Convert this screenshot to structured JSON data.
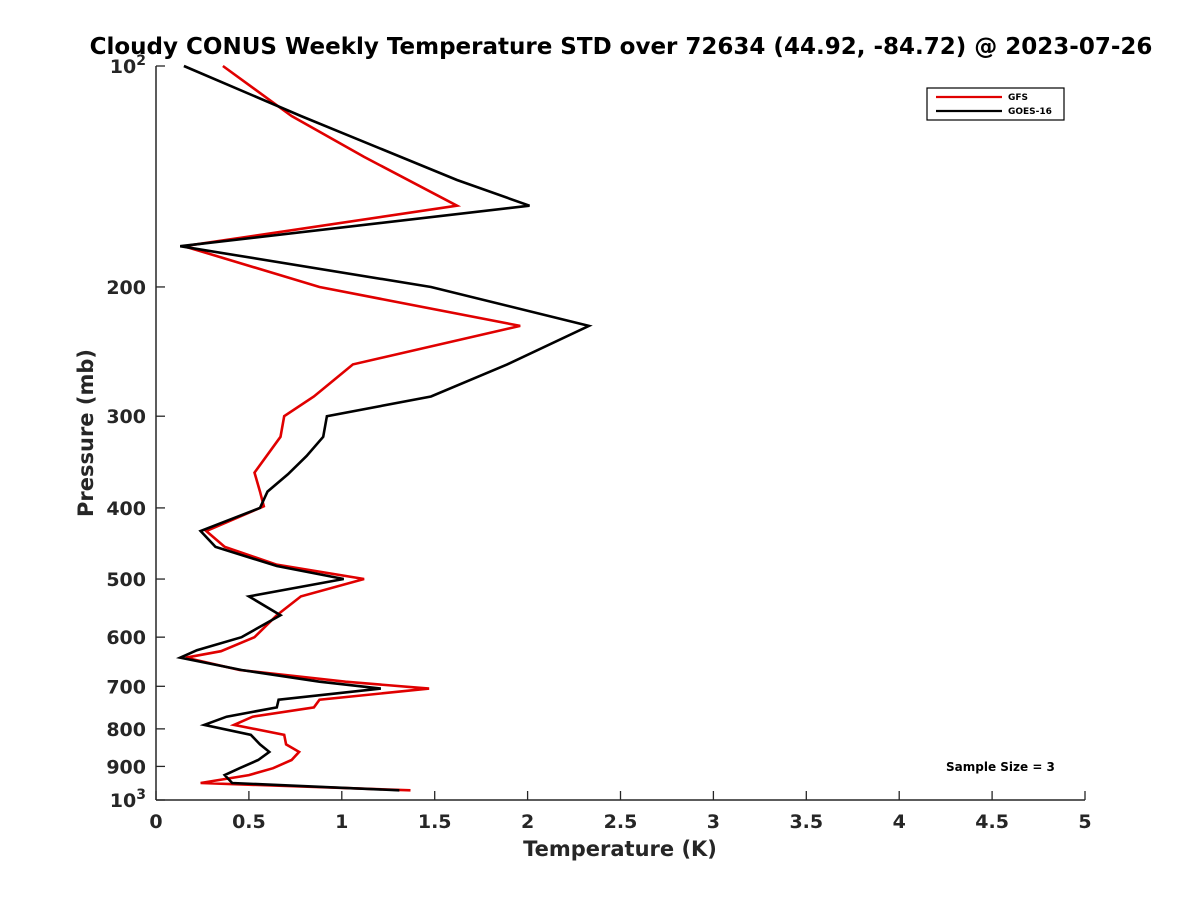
{
  "chart_data": {
    "type": "line",
    "title": "Cloudy CONUS Weekly Temperature STD over 72634 (44.92, -84.72) @ 2023-07-26",
    "xlabel": "Temperature (K)",
    "ylabel": "Pressure (mb)",
    "xlim": [
      0,
      5
    ],
    "ylim": [
      100,
      1000
    ],
    "yscale": "log",
    "yreversed": true,
    "x_ticks": [
      "0",
      "0.5",
      "1",
      "1.5",
      "2",
      "2.5",
      "3",
      "3.5",
      "4",
      "4.5",
      "5"
    ],
    "y_ticks": [
      {
        "value": 100,
        "base": "10",
        "exp": "2"
      },
      {
        "value": 200,
        "label": "200"
      },
      {
        "value": 300,
        "label": "300"
      },
      {
        "value": 400,
        "label": "400"
      },
      {
        "value": 500,
        "label": "500"
      },
      {
        "value": 600,
        "label": "600"
      },
      {
        "value": 700,
        "label": "700"
      },
      {
        "value": 800,
        "label": "800"
      },
      {
        "value": 900,
        "label": "900"
      },
      {
        "value": 1000,
        "base": "10",
        "exp": "3"
      }
    ],
    "grid": false,
    "legend_position": "top-right",
    "annotation": "Sample Size = 3",
    "series": [
      {
        "name": "GFS",
        "color": "#e00000",
        "x": [
          0.36,
          0.73,
          1.12,
          1.62,
          0.15,
          0.88,
          1.96,
          1.06,
          0.85,
          0.69,
          0.67,
          0.53,
          0.56,
          0.58,
          0.27,
          0.37,
          0.65,
          1.12,
          0.78,
          0.65,
          0.53,
          0.35,
          0.16,
          0.45,
          1.02,
          1.47,
          0.88,
          0.85,
          0.52,
          0.42,
          0.69,
          0.7,
          0.77,
          0.73,
          0.63,
          0.5,
          0.24,
          1.37
        ],
        "y": [
          100,
          117,
          133,
          155,
          176,
          200,
          226,
          255,
          282,
          300,
          320,
          358,
          380,
          398,
          430,
          452,
          478,
          500,
          528,
          560,
          600,
          627,
          640,
          665,
          690,
          705,
          730,
          748,
          770,
          790,
          815,
          840,
          860,
          882,
          905,
          925,
          948,
          970
        ]
      },
      {
        "name": "GOES-16",
        "color": "#000000",
        "x": [
          0.15,
          0.78,
          1.62,
          2.01,
          0.13,
          1.48,
          2.33,
          1.89,
          1.48,
          0.92,
          0.9,
          0.81,
          0.71,
          0.6,
          0.56,
          0.24,
          0.32,
          0.65,
          1.01,
          0.5,
          0.67,
          0.46,
          0.22,
          0.13,
          0.46,
          0.88,
          1.21,
          0.66,
          0.65,
          0.38,
          0.26,
          0.51,
          0.56,
          0.61,
          0.55,
          0.45,
          0.37,
          0.41,
          1.31
        ],
        "y": [
          100,
          117,
          143,
          155,
          176,
          200,
          226,
          255,
          282,
          300,
          320,
          340,
          360,
          380,
          400,
          430,
          452,
          480,
          500,
          528,
          560,
          600,
          625,
          640,
          665,
          690,
          705,
          730,
          748,
          770,
          790,
          815,
          840,
          860,
          882,
          905,
          925,
          948,
          970
        ]
      }
    ]
  }
}
